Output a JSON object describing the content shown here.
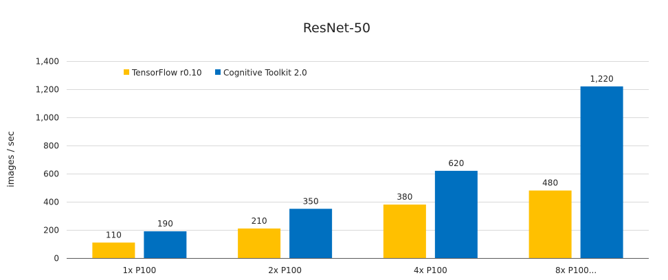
{
  "chart_data": {
    "type": "bar",
    "title": "ResNet-50",
    "xlabel": "",
    "ylabel": "images / sec",
    "ylim": [
      0,
      1400
    ],
    "ytick_step": 200,
    "yticks": [
      "0",
      "200",
      "400",
      "600",
      "800",
      "1,000",
      "1,200",
      "1,400"
    ],
    "grid": true,
    "legend_position": "top-left",
    "categories": [
      "1x P100",
      "2x P100",
      "4x P100",
      "8x P100..."
    ],
    "series": [
      {
        "name": "TensorFlow r0.10",
        "color": "#FFC000",
        "values": [
          110,
          210,
          380,
          480
        ],
        "labels": [
          "110",
          "210",
          "380",
          "480"
        ]
      },
      {
        "name": "Cognitive Toolkit 2.0",
        "color": "#0070C0",
        "values": [
          190,
          350,
          620,
          1220
        ],
        "labels": [
          "190",
          "350",
          "620",
          "1,220"
        ]
      }
    ]
  }
}
